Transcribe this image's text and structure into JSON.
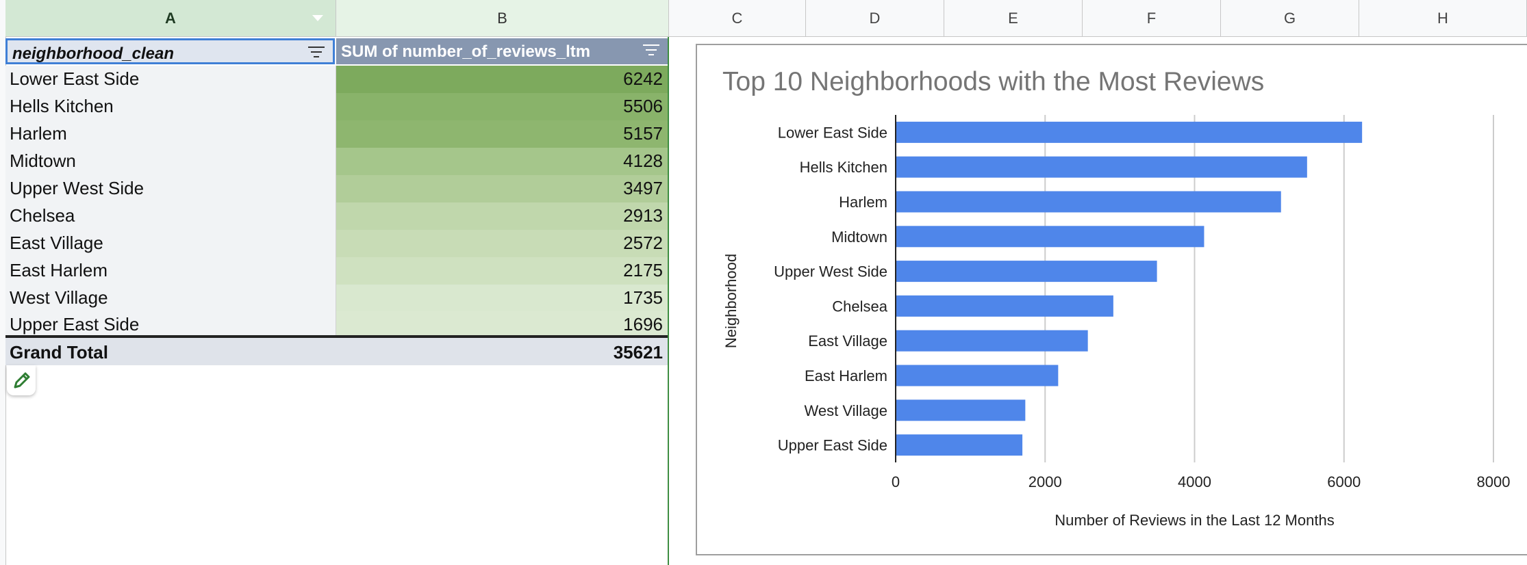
{
  "sheet": {
    "columns": [
      "A",
      "B",
      "C",
      "D",
      "E",
      "F",
      "G",
      "H"
    ],
    "pivot": {
      "row_header": "neighborhood_clean",
      "value_header": "SUM of number_of_reviews_ltm",
      "rows": [
        {
          "label": "Lower East Side",
          "value": "6242"
        },
        {
          "label": "Hells Kitchen",
          "value": "5506"
        },
        {
          "label": "Harlem",
          "value": "5157"
        },
        {
          "label": "Midtown",
          "value": "4128"
        },
        {
          "label": "Upper West Side",
          "value": "3497"
        },
        {
          "label": "Chelsea",
          "value": "2913"
        },
        {
          "label": "East Village",
          "value": "2572"
        },
        {
          "label": "East Harlem",
          "value": "2175"
        },
        {
          "label": "West Village",
          "value": "1735"
        },
        {
          "label": "Upper East Side",
          "value": "1696"
        }
      ],
      "grand_total_label": "Grand Total",
      "grand_total_value": "35621",
      "heat_colors": [
        "#7daa5d",
        "#89b36a",
        "#8eb66f",
        "#a5c68b",
        "#b1cd99",
        "#c0d7ac",
        "#c8dcb6",
        "#cfe1c0",
        "#d9e8cf",
        "#dbe9d1"
      ]
    },
    "icons": {
      "filter": "filter-icon",
      "edit": "pencil-icon"
    },
    "accent_color": "#3e8e41"
  },
  "chart_data": {
    "type": "bar",
    "orientation": "horizontal",
    "title": "Top 10 Neighborhoods with the Most Reviews",
    "xlabel": "Number of Reviews in the Last 12 Months",
    "ylabel": "Neighborhood",
    "categories": [
      "Lower East Side",
      "Hells Kitchen",
      "Harlem",
      "Midtown",
      "Upper West Side",
      "Chelsea",
      "East Village",
      "East Harlem",
      "West Village",
      "Upper East Side"
    ],
    "values": [
      6242,
      5506,
      5157,
      4128,
      3497,
      2913,
      2572,
      2175,
      1735,
      1696
    ],
    "xlim": [
      0,
      8000
    ],
    "xticks": [
      "0",
      "2000",
      "4000",
      "6000",
      "8000"
    ],
    "grid": true,
    "bar_color": "#4f86ea"
  }
}
